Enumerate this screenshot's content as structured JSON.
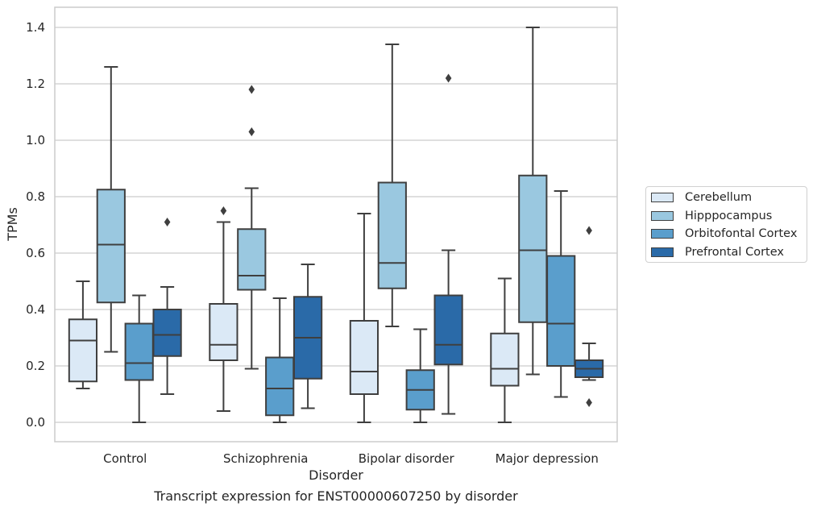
{
  "chart_data": {
    "type": "box",
    "title": "Transcript expression for ENST00000607250 by disorder",
    "xlabel": "Disorder",
    "ylabel": "TPMs",
    "ylim": [
      -0.065,
      1.47
    ],
    "yticks": [
      "0.0",
      "0.2",
      "0.4",
      "0.6",
      "0.8",
      "1.0",
      "1.2",
      "1.4"
    ],
    "grid": "horizontal",
    "legend_position": "right",
    "categories": [
      "Control",
      "Schizophrenia",
      "Bipolar disorder",
      "Major depression"
    ],
    "series": [
      {
        "name": "Cerebellum",
        "color": "#dbe9f6",
        "boxes": [
          {
            "min": 0.12,
            "q1": 0.145,
            "median": 0.29,
            "q3": 0.365,
            "max": 0.5,
            "outliers": []
          },
          {
            "min": 0.04,
            "q1": 0.22,
            "median": 0.275,
            "q3": 0.42,
            "max": 0.71,
            "outliers": [
              0.75
            ]
          },
          {
            "min": 0.0,
            "q1": 0.1,
            "median": 0.18,
            "q3": 0.36,
            "max": 0.74,
            "outliers": []
          },
          {
            "min": 0.0,
            "q1": 0.13,
            "median": 0.19,
            "q3": 0.315,
            "max": 0.51,
            "outliers": []
          }
        ]
      },
      {
        "name": "Hipppocampus",
        "color": "#9ac8e0",
        "boxes": [
          {
            "min": 0.25,
            "q1": 0.425,
            "median": 0.63,
            "q3": 0.825,
            "max": 1.26,
            "outliers": []
          },
          {
            "min": 0.19,
            "q1": 0.47,
            "median": 0.52,
            "q3": 0.685,
            "max": 0.83,
            "outliers": [
              1.03,
              1.18
            ]
          },
          {
            "min": 0.34,
            "q1": 0.475,
            "median": 0.565,
            "q3": 0.85,
            "max": 1.34,
            "outliers": []
          },
          {
            "min": 0.17,
            "q1": 0.355,
            "median": 0.61,
            "q3": 0.875,
            "max": 1.4,
            "outliers": []
          }
        ]
      },
      {
        "name": "Orbitofontal Cortex",
        "color": "#5a9ecc",
        "boxes": [
          {
            "min": 0.0,
            "q1": 0.15,
            "median": 0.21,
            "q3": 0.35,
            "max": 0.45,
            "outliers": []
          },
          {
            "min": 0.0,
            "q1": 0.025,
            "median": 0.12,
            "q3": 0.23,
            "max": 0.44,
            "outliers": []
          },
          {
            "min": 0.0,
            "q1": 0.045,
            "median": 0.115,
            "q3": 0.185,
            "max": 0.33,
            "outliers": []
          },
          {
            "min": 0.09,
            "q1": 0.2,
            "median": 0.35,
            "q3": 0.59,
            "max": 0.82,
            "outliers": []
          }
        ]
      },
      {
        "name": "Prefrontal Cortex",
        "color": "#2a6aa8",
        "boxes": [
          {
            "min": 0.1,
            "q1": 0.235,
            "median": 0.31,
            "q3": 0.4,
            "max": 0.48,
            "outliers": [
              0.71
            ]
          },
          {
            "min": 0.05,
            "q1": 0.155,
            "median": 0.3,
            "q3": 0.445,
            "max": 0.56,
            "outliers": []
          },
          {
            "min": 0.03,
            "q1": 0.205,
            "median": 0.275,
            "q3": 0.45,
            "max": 0.61,
            "outliers": [
              1.22
            ]
          },
          {
            "min": 0.15,
            "q1": 0.16,
            "median": 0.19,
            "q3": 0.22,
            "max": 0.28,
            "outliers": [
              0.07,
              0.68
            ]
          }
        ]
      }
    ]
  }
}
